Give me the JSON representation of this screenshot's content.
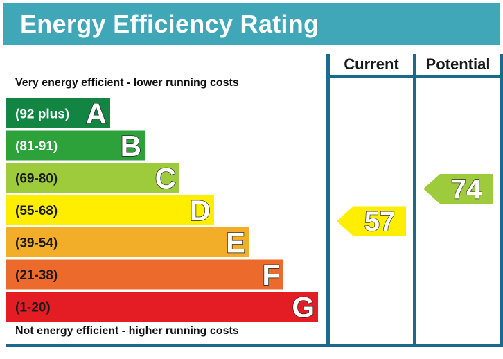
{
  "title": "Energy Efficiency Rating",
  "top_note": "Very energy efficient - lower running costs",
  "bottom_note": "Not energy efficient - higher running costs",
  "columns": {
    "current": "Current",
    "potential": "Potential"
  },
  "colors": {
    "header": "#40a7b9",
    "border": "#1a6a8e"
  },
  "chart_data": {
    "type": "bar",
    "title": "Energy Efficiency Rating",
    "bands": [
      {
        "letter": "A",
        "range": "(92 plus)",
        "min": 92,
        "max": 100,
        "color": "#138542",
        "text_color": "#ffffff"
      },
      {
        "letter": "B",
        "range": "(81-91)",
        "min": 81,
        "max": 91,
        "color": "#2ea23a",
        "text_color": "#ffffff"
      },
      {
        "letter": "C",
        "range": "(69-80)",
        "min": 69,
        "max": 80,
        "color": "#9dcb3c",
        "text_color": "#1a1a1a"
      },
      {
        "letter": "D",
        "range": "(55-68)",
        "min": 55,
        "max": 68,
        "color": "#ffee00",
        "text_color": "#1a1a1a"
      },
      {
        "letter": "E",
        "range": "(39-54)",
        "min": 39,
        "max": 54,
        "color": "#f2ae28",
        "text_color": "#1a1a1a"
      },
      {
        "letter": "F",
        "range": "(21-38)",
        "min": 21,
        "max": 38,
        "color": "#ec6a2b",
        "text_color": "#1a1a1a"
      },
      {
        "letter": "G",
        "range": "(1-20)",
        "min": 1,
        "max": 20,
        "color": "#e31d23",
        "text_color": "#1a1a1a"
      }
    ],
    "current": {
      "value": 57,
      "band": "D",
      "color": "#ffee00"
    },
    "potential": {
      "value": 74,
      "band": "C",
      "color": "#9dcb3c"
    }
  }
}
